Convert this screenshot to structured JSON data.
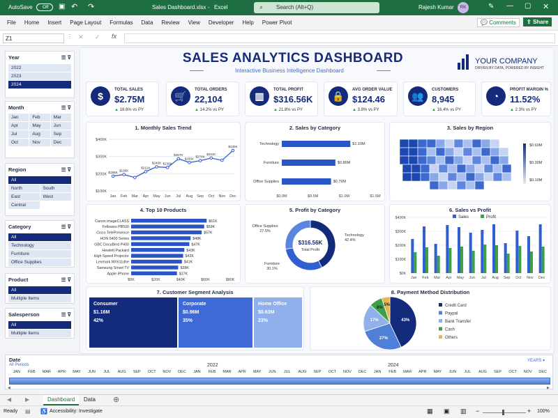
{
  "titlebar": {
    "autosave": "AutoSave",
    "toggle": "Off",
    "filename": "Sales Dashboard.xlsx",
    "dash": "-",
    "app": "Excel",
    "search": "Search (Alt+Q)",
    "user": "Rajesh Kumar",
    "initials": "RK"
  },
  "menu": [
    "File",
    "Home",
    "Insert",
    "Page Layout",
    "Formulas",
    "Data",
    "Review",
    "View",
    "Developer",
    "Help",
    "Power Pivot"
  ],
  "comments": "Comments",
  "share": "Share",
  "namebox": "Z1",
  "header": {
    "title": "SALES ANALYTICS DASHBOARD",
    "subtitle": "Interactive Business Intelligence Dashboard",
    "company": "YOUR COMPANY",
    "tagline": "DRIVEN BY DATA, POWERED BY INSIGHT"
  },
  "slicers": {
    "year": {
      "title": "Year",
      "items": [
        "2022",
        "2023",
        "2024"
      ],
      "selected": "2024"
    },
    "month": {
      "title": "Month",
      "items": [
        "Jan",
        "Feb",
        "Mar",
        "Apr",
        "May",
        "Jun",
        "Jul",
        "Aug",
        "Sep",
        "Oct",
        "Nov",
        "Dec"
      ]
    },
    "region": {
      "title": "Region",
      "items": [
        "All",
        "North",
        "South",
        "East",
        "West",
        "Central"
      ]
    },
    "category": {
      "title": "Category",
      "items": [
        "All",
        "Technology",
        "Furniture",
        "Office Supplies"
      ]
    },
    "product": {
      "title": "Product",
      "items": [
        "All",
        "Multiple Items"
      ]
    },
    "salesperson": {
      "title": "Salesperson",
      "items": [
        "All",
        "Multiple Items"
      ]
    }
  },
  "kpis": [
    {
      "label": "TOTAL SALES",
      "value": "$2.75M",
      "delta": "18.6% vs PY",
      "icon": "$"
    },
    {
      "label": "TOTAL ORDERS",
      "value": "22,104",
      "delta": "14.2% vs PY",
      "icon": "cart"
    },
    {
      "label": "TOTAL PROFIT",
      "value": "$316.56K",
      "delta": "21.8% vs PY",
      "icon": "chart"
    },
    {
      "label": "AVG ORDER VALUE",
      "value": "$124.46",
      "delta": "3.8% vs PY",
      "icon": "bag"
    },
    {
      "label": "CUSTOMERS",
      "value": "8,945",
      "delta": "16.4% vs PY",
      "icon": "people"
    },
    {
      "label": "PROFIT MARGIN %",
      "value": "11.52%",
      "delta": "2.3% vs PY",
      "icon": "pie"
    }
  ],
  "chart_titles": {
    "c1": "1. Monthly Sales Trend",
    "c2": "2. Sales by Category",
    "c3": "3. Sales by Region",
    "c4": "4. Top 10 Products",
    "c5": "5. Profit by Category",
    "c6": "6. Sales vs Profit",
    "c7": "7. Customer Segment Analysis",
    "c8": "8. Payment Method Distribution"
  },
  "chart_data": [
    {
      "type": "line",
      "title": "1. Monthly Sales Trend",
      "categories": [
        "Jan",
        "Feb",
        "Mar",
        "Apr",
        "May",
        "Jun",
        "Jul",
        "Aug",
        "Sep",
        "Oct",
        "Nov",
        "Dec"
      ],
      "values": [
        186,
        195,
        178,
        212,
        240,
        236,
        287,
        265,
        276,
        291,
        278,
        335
      ],
      "labels": [
        "$186K",
        "$195K",
        "",
        "$212K",
        "$240K",
        "$236K",
        "$287K",
        "$265K",
        "$276K",
        "$291K",
        "",
        "$335K"
      ],
      "yticks": [
        "$100K",
        "$200K",
        "$300K",
        "$400K"
      ],
      "ylim": [
        100,
        400
      ]
    },
    {
      "type": "bar",
      "title": "2. Sales by Category",
      "categories": [
        "Technology",
        "Furniture",
        "Office Supplies"
      ],
      "values": [
        1.1,
        0.86,
        0.79
      ],
      "labels": [
        "$1.10M",
        "$0.86M",
        "$0.79M"
      ],
      "xticks": [
        "$0.0M",
        "$0.5M",
        "$1.0M",
        "$1.5M"
      ],
      "xlim": [
        0,
        1.5
      ]
    },
    {
      "type": "map",
      "title": "3. Sales by Region",
      "legend": [
        "$0.60M",
        "$0.30M",
        "$0.10M"
      ]
    },
    {
      "type": "bar",
      "title": "4. Top 10 Products",
      "categories": [
        "Canon imageCLASS",
        "Fellowes PB500",
        "Cisco TelePresence",
        "HON 5400 Series",
        "GBC DocuBind P400",
        "Hewlett Packard",
        "High Speed Projector",
        "Lexmark MX611dhe",
        "Samsung Smart TV",
        "Apple iPhone"
      ],
      "values": [
        61,
        59,
        57,
        48,
        47,
        43,
        42,
        41,
        38,
        37
      ],
      "labels": [
        "$61K",
        "$59K",
        "$57K",
        "$48K",
        "$47K",
        "$43K",
        "$42K",
        "$41K",
        "$38K",
        "$37K"
      ],
      "xticks": [
        "$0K",
        "$20K",
        "$40K",
        "$60K",
        "$80K"
      ],
      "xlim": [
        0,
        80
      ]
    },
    {
      "type": "pie",
      "title": "5. Profit by Category",
      "center_value": "$316.56K",
      "center_label": "Total Profit",
      "slices": [
        {
          "name": "Technology",
          "value": 42.4,
          "label": "42.4%"
        },
        {
          "name": "Furniture",
          "value": 30.1,
          "label": "30.1%"
        },
        {
          "name": "Office Supplies",
          "value": 27.5,
          "label": "27.5%"
        }
      ]
    },
    {
      "type": "bar",
      "title": "6. Sales vs Profit",
      "categories": [
        "Jan",
        "Feb",
        "Mar",
        "Apr",
        "May",
        "Jun",
        "Jul",
        "Aug",
        "Sep",
        "Oct",
        "Nov",
        "Dec"
      ],
      "series": [
        {
          "name": "Sales",
          "values": [
            245,
            335,
            210,
            345,
            330,
            290,
            310,
            350,
            215,
            305,
            265,
            350
          ]
        },
        {
          "name": "Profit",
          "values": [
            150,
            185,
            125,
            180,
            190,
            160,
            205,
            200,
            140,
            195,
            155,
            190
          ]
        }
      ],
      "yticks": [
        "$0K",
        "$100K",
        "$200K",
        "$300K",
        "$400K"
      ],
      "ylim": [
        0,
        400
      ]
    },
    {
      "type": "table",
      "title": "7. Customer Segment Analysis",
      "segments": [
        {
          "name": "Consumer",
          "sales": "$1.16M",
          "share": "42%"
        },
        {
          "name": "Corporate",
          "sales": "$0.96M",
          "share": "35%"
        },
        {
          "name": "Home Office",
          "sales": "$0.63M",
          "share": "23%"
        }
      ]
    },
    {
      "type": "pie",
      "title": "8. Payment Method Distribution",
      "slices": [
        {
          "name": "Credit Card",
          "value": 43,
          "label": "43%"
        },
        {
          "name": "Paypal",
          "value": 27,
          "label": "27%"
        },
        {
          "name": "Bank Transfer",
          "value": 17,
          "label": "17%"
        },
        {
          "name": "Cash",
          "value": 8,
          "label": "8%"
        },
        {
          "name": "Others",
          "value": 5,
          "label": "5%"
        }
      ]
    }
  ],
  "colors": {
    "navy": "#142a7a",
    "blue": "#2f5fd0",
    "mid": "#5b86e0",
    "light": "#9db8ef",
    "green": "#3aa04a",
    "yellow": "#e8b84b"
  },
  "timeline": {
    "title": "Date",
    "sub": "All Periods",
    "unit": "YEARS",
    "y1": "2022",
    "y2": "2024",
    "months": [
      "JAN",
      "FEB",
      "MAR",
      "APR",
      "MAY",
      "JUN",
      "JUL",
      "AUG",
      "SEP",
      "OCT",
      "NOV",
      "DEC",
      "JAN",
      "FEB",
      "MAR",
      "APR",
      "MAY",
      "JUN",
      "JUL",
      "AUG",
      "SEP",
      "OCT",
      "NOV",
      "DEC",
      "JAN",
      "FEB",
      "MAR",
      "APR",
      "MAY",
      "JUN",
      "JUL",
      "AUG",
      "SEP",
      "OCT",
      "NOV",
      "DEC"
    ]
  },
  "sheettabs": [
    "Dashboard",
    "Data"
  ],
  "status": {
    "ready": "Ready",
    "access": "Accessibility: Investigate",
    "zoom": "100%"
  }
}
